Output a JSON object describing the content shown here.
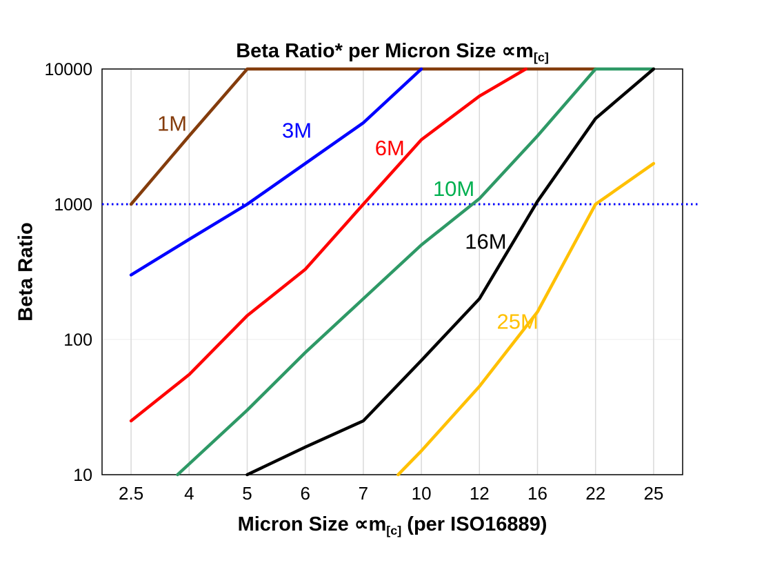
{
  "header": {
    "title_prefix": "Beta Ratio* per Micron Size ∝m",
    "title_sub": "[c]",
    "ylabel": "Beta Ratio",
    "xlabel_prefix": "Micron Size ∝m",
    "xlabel_sub": "[c]",
    "xlabel_suffix": " (per ISO16889)"
  },
  "chart_data": {
    "type": "line",
    "title": "Beta Ratio* per Micron Size ∝m[c]",
    "xlabel": "Micron Size ∝m[c] (per ISO16889)",
    "ylabel": "Beta Ratio",
    "x_categories": [
      "2.5",
      "4",
      "5",
      "6",
      "7",
      "10",
      "12",
      "16",
      "22",
      "25"
    ],
    "y_scale": "log",
    "ylim": [
      10,
      10000
    ],
    "y_ticks": [
      10,
      100,
      1000,
      10000
    ],
    "grid": "vertical-light-gray",
    "legend_position": "inline-labels",
    "reference_line": {
      "y": 1000,
      "style": "dotted",
      "color": "#0000ff",
      "label": ""
    },
    "colors": {
      "grid": "#d9d9d9",
      "h_grid": "#ececec",
      "border": "#000000"
    },
    "series": [
      {
        "name": "1M",
        "color": "#843c0c",
        "points": [
          [
            0,
            1000
          ],
          [
            1,
            3200
          ],
          [
            2,
            10000
          ],
          [
            8,
            10000
          ]
        ],
        "label_pos": [
          0.45,
          3500
        ]
      },
      {
        "name": "3M",
        "color": "#0000ff",
        "points": [
          [
            0,
            300
          ],
          [
            1,
            550
          ],
          [
            2,
            1000
          ],
          [
            3,
            2000
          ],
          [
            4,
            4000
          ],
          [
            5,
            10000
          ]
        ],
        "label_pos": [
          2.6,
          3100
        ]
      },
      {
        "name": "6M",
        "color": "#ff0000",
        "points": [
          [
            0,
            25
          ],
          [
            1,
            55
          ],
          [
            2,
            150
          ],
          [
            3,
            330
          ],
          [
            4,
            1000
          ],
          [
            5,
            3000
          ],
          [
            6,
            6300
          ],
          [
            6.8,
            10000
          ]
        ],
        "label_pos": [
          4.2,
          2300
        ]
      },
      {
        "name": "10M",
        "color": "#2e9966",
        "label_color": "#00b050",
        "points": [
          [
            0.8,
            10
          ],
          [
            1,
            12
          ],
          [
            2,
            30
          ],
          [
            3,
            80
          ],
          [
            4,
            200
          ],
          [
            5,
            500
          ],
          [
            6,
            1100
          ],
          [
            7,
            3200
          ],
          [
            8,
            10000
          ],
          [
            9,
            10000
          ]
        ],
        "label_pos": [
          5.2,
          1150
        ]
      },
      {
        "name": "16M",
        "color": "#000000",
        "points": [
          [
            2,
            10
          ],
          [
            3,
            16
          ],
          [
            4,
            25
          ],
          [
            5,
            70
          ],
          [
            6,
            200
          ],
          [
            7,
            1050
          ],
          [
            8,
            4300
          ],
          [
            9,
            10000
          ]
        ],
        "label_pos": [
          5.75,
          470
        ]
      },
      {
        "name": "25M",
        "color": "#ffc000",
        "points": [
          [
            4.6,
            10
          ],
          [
            5,
            15
          ],
          [
            6,
            45
          ],
          [
            7,
            160
          ],
          [
            8,
            1000
          ],
          [
            9,
            2000
          ]
        ],
        "label_pos": [
          6.3,
          120
        ]
      }
    ]
  }
}
